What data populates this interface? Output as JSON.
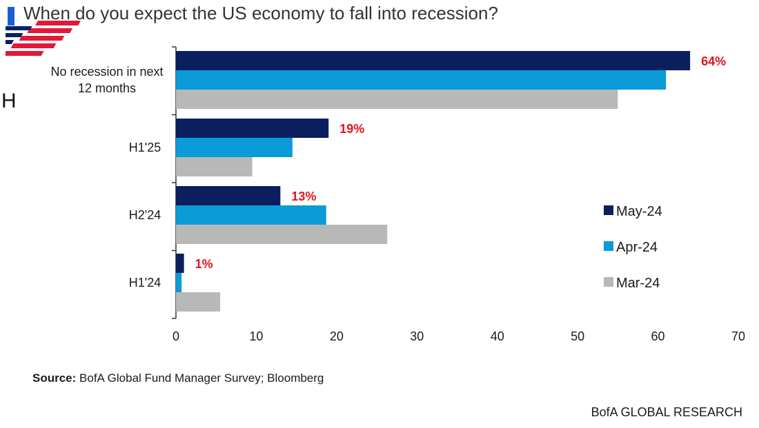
{
  "header": {
    "title": "When do you expect the US economy to fall into recession?",
    "accent_color": "#1f5fd6",
    "stray_text": "H"
  },
  "logo": {
    "icon": "bank-of-america-flag-logo-icon",
    "colors": {
      "red": "#e31837",
      "navy": "#012169"
    }
  },
  "chart_data": {
    "type": "bar",
    "orientation": "horizontal",
    "title": "",
    "xlabel": "",
    "ylabel": "",
    "categories": [
      "No recession in next 12 months",
      "H1'25",
      "H2'24",
      "H1'24"
    ],
    "category_label_lines": [
      [
        "No recession in next",
        "12 months"
      ],
      [
        "H1'25"
      ],
      [
        "H2'24"
      ],
      [
        "H1'24"
      ]
    ],
    "series": [
      {
        "name": "May-24",
        "color": "#0b1f5e",
        "values": [
          64,
          19,
          13,
          1
        ]
      },
      {
        "name": "Apr-24",
        "color": "#0a9bd8",
        "values": [
          61,
          14.5,
          18.7,
          0.7
        ]
      },
      {
        "name": "Mar-24",
        "color": "#b8b8b8",
        "values": [
          55,
          9.5,
          26.3,
          5.5
        ]
      }
    ],
    "data_labels": [
      "64%",
      "19%",
      "13%",
      "1%"
    ],
    "data_label_color": "#e0161b",
    "xlim": [
      0,
      70
    ],
    "xticks": [
      "0",
      "10",
      "20",
      "30",
      "40",
      "50",
      "60",
      "70"
    ],
    "grid": false,
    "legend_position": "right"
  },
  "footer": {
    "source_label": "Source:",
    "source_text": " BofA Global Fund Manager Survey; Bloomberg",
    "brand": "BofA GLOBAL RESEARCH"
  }
}
